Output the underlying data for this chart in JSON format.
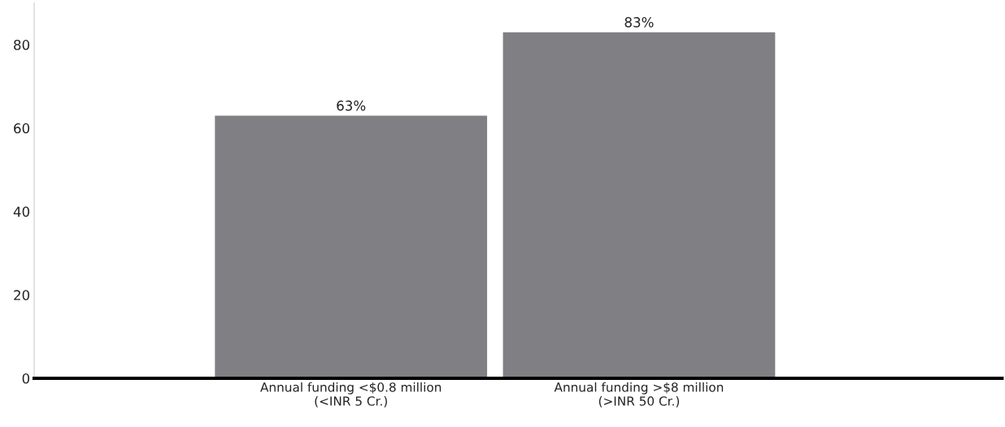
{
  "chart_data": {
    "type": "bar",
    "categories": [
      "Annual funding <$0.8 million\n(<INR 5 Cr.)",
      "Annual funding >$8 million\n(>INR 50 Cr.)"
    ],
    "values": [
      63,
      83
    ],
    "color": "#808084",
    "value_labels": [
      "63%",
      "83%"
    ],
    "ylim": [
      0,
      90
    ],
    "yticks": [
      0,
      20,
      40,
      60,
      80
    ],
    "grid": false,
    "legend": false
  }
}
